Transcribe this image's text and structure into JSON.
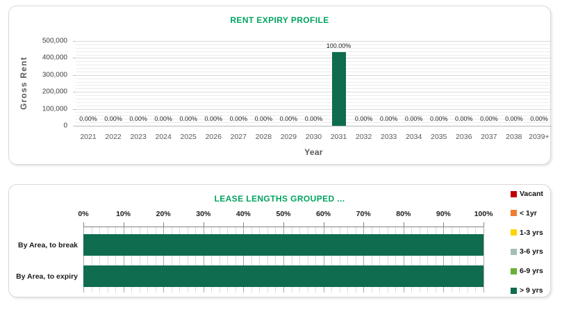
{
  "theme": {
    "title_color": "#00A45F",
    "panel_border": "#d9d9d9",
    "bar_green": "#0F6C4E"
  },
  "chart_data": [
    {
      "type": "bar",
      "title": "RENT EXPIRY PROFILE",
      "title_color": "#00A45F",
      "xlabel": "Year",
      "ylabel": "Gross Rent",
      "ylim": [
        0,
        500000
      ],
      "y_major_unit": 100000,
      "y_minor_unit": 20000,
      "y_tick_labels": [
        "0",
        "100,000",
        "200,000",
        "300,000",
        "400,000",
        "500,000"
      ],
      "grid": true,
      "legend_position": "none",
      "bar_color": "#0F6C4E",
      "categories": [
        "2021",
        "2022",
        "2023",
        "2024",
        "2025",
        "2026",
        "2027",
        "2028",
        "2029",
        "2030",
        "2031",
        "2032",
        "2033",
        "2034",
        "2035",
        "2036",
        "2037",
        "2038",
        "2039+"
      ],
      "values": [
        0,
        0,
        0,
        0,
        0,
        0,
        0,
        0,
        0,
        0,
        436000,
        0,
        0,
        0,
        0,
        0,
        0,
        0,
        0
      ],
      "data_labels": [
        "0.00%",
        "0.00%",
        "0.00%",
        "0.00%",
        "0.00%",
        "0.00%",
        "0.00%",
        "0.00%",
        "0.00%",
        "0.00%",
        "100.00%",
        "0.00%",
        "0.00%",
        "0.00%",
        "0.00%",
        "0.00%",
        "0.00%",
        "0.00%",
        "0.00%"
      ]
    },
    {
      "type": "bar-horizontal-stacked",
      "title": "LEASE LENGTHS GROUPED ...",
      "title_color": "#00A45F",
      "xlim": [
        0,
        100
      ],
      "x_major_unit": 10,
      "x_minor_unit": 2,
      "x_tick_labels": [
        "0%",
        "10%",
        "20%",
        "30%",
        "40%",
        "50%",
        "60%",
        "70%",
        "80%",
        "90%",
        "100%"
      ],
      "grid": true,
      "legend_position": "right",
      "categories": [
        "By Area, to break",
        "By Area, to expiry"
      ],
      "series": [
        {
          "name": "Vacant",
          "color": "#C00000",
          "values": [
            0,
            0
          ]
        },
        {
          "name": "< 1yr",
          "color": "#ED7D31",
          "values": [
            0,
            0
          ]
        },
        {
          "name": "1-3 yrs",
          "color": "#FFD400",
          "values": [
            0,
            0
          ]
        },
        {
          "name": "3-6 yrs",
          "color": "#A6BFB5",
          "values": [
            0,
            0
          ]
        },
        {
          "name": "6-9 yrs",
          "color": "#69B038",
          "values": [
            0,
            0
          ]
        },
        {
          "name": "> 9 yrs",
          "color": "#0F6C4E",
          "values": [
            100,
            100
          ]
        }
      ]
    }
  ]
}
